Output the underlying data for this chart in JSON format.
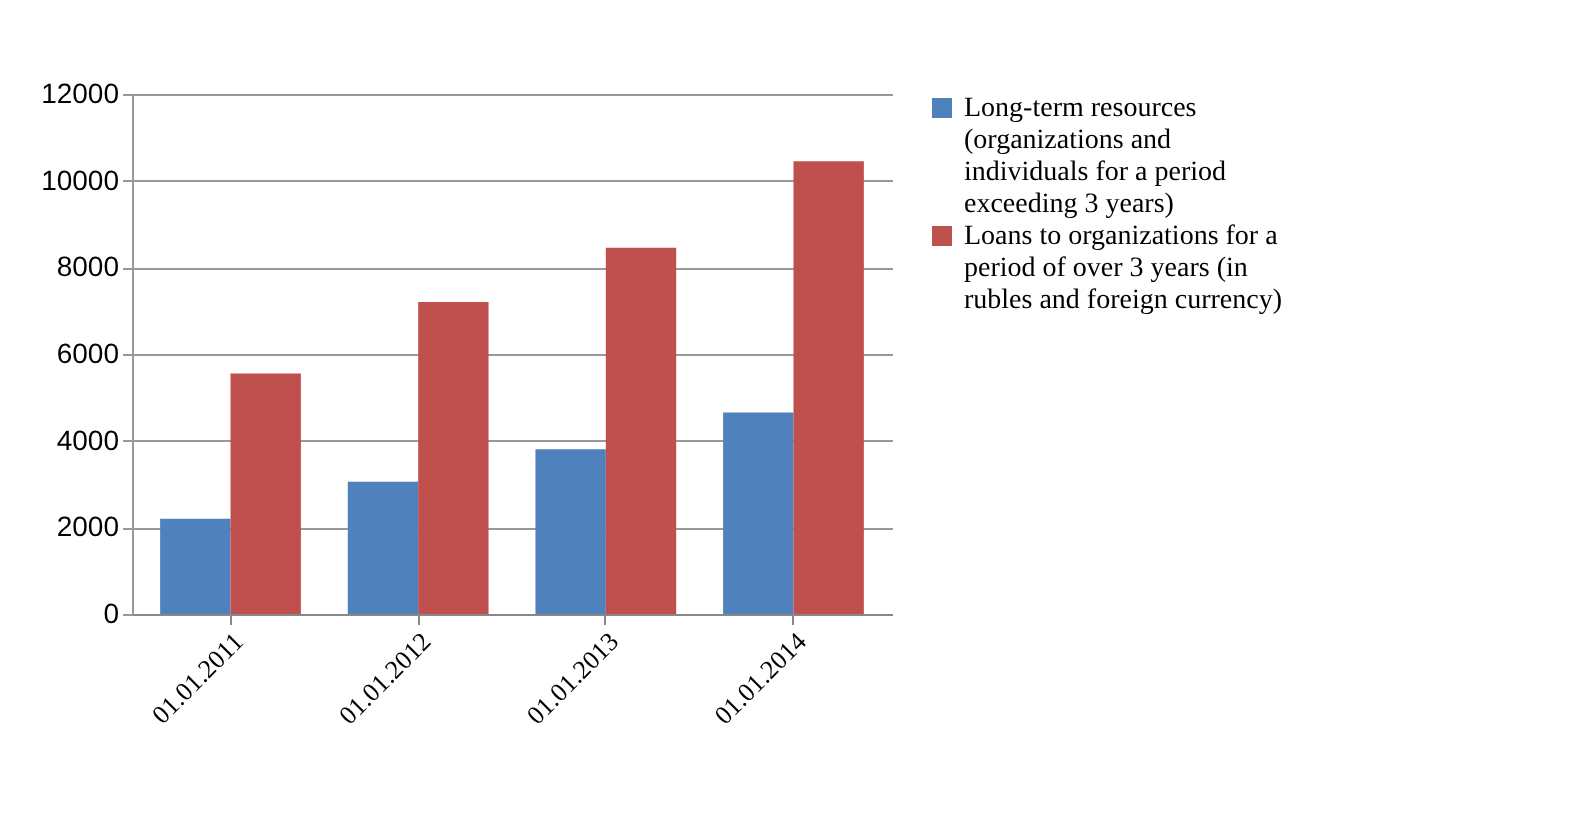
{
  "chart_data": {
    "type": "bar",
    "categories": [
      "01.01.2011",
      "01.01.2012",
      "01.01.2013",
      "01.01.2014"
    ],
    "series": [
      {
        "name": "Long-term resources (organizations and individuals for a period exceeding 3 years)",
        "color": "#4f81bd",
        "values": [
          2200,
          3050,
          3800,
          4650
        ]
      },
      {
        "name": "Loans to organizations for a period of over 3 years (in rubles and foreign currency)",
        "color": "#c0504d",
        "values": [
          5550,
          7200,
          8450,
          10450
        ]
      }
    ],
    "ylim": [
      0,
      12000
    ],
    "yticks": [
      0,
      2000,
      4000,
      6000,
      8000,
      10000,
      12000
    ],
    "grid": "y",
    "legend": "right"
  }
}
